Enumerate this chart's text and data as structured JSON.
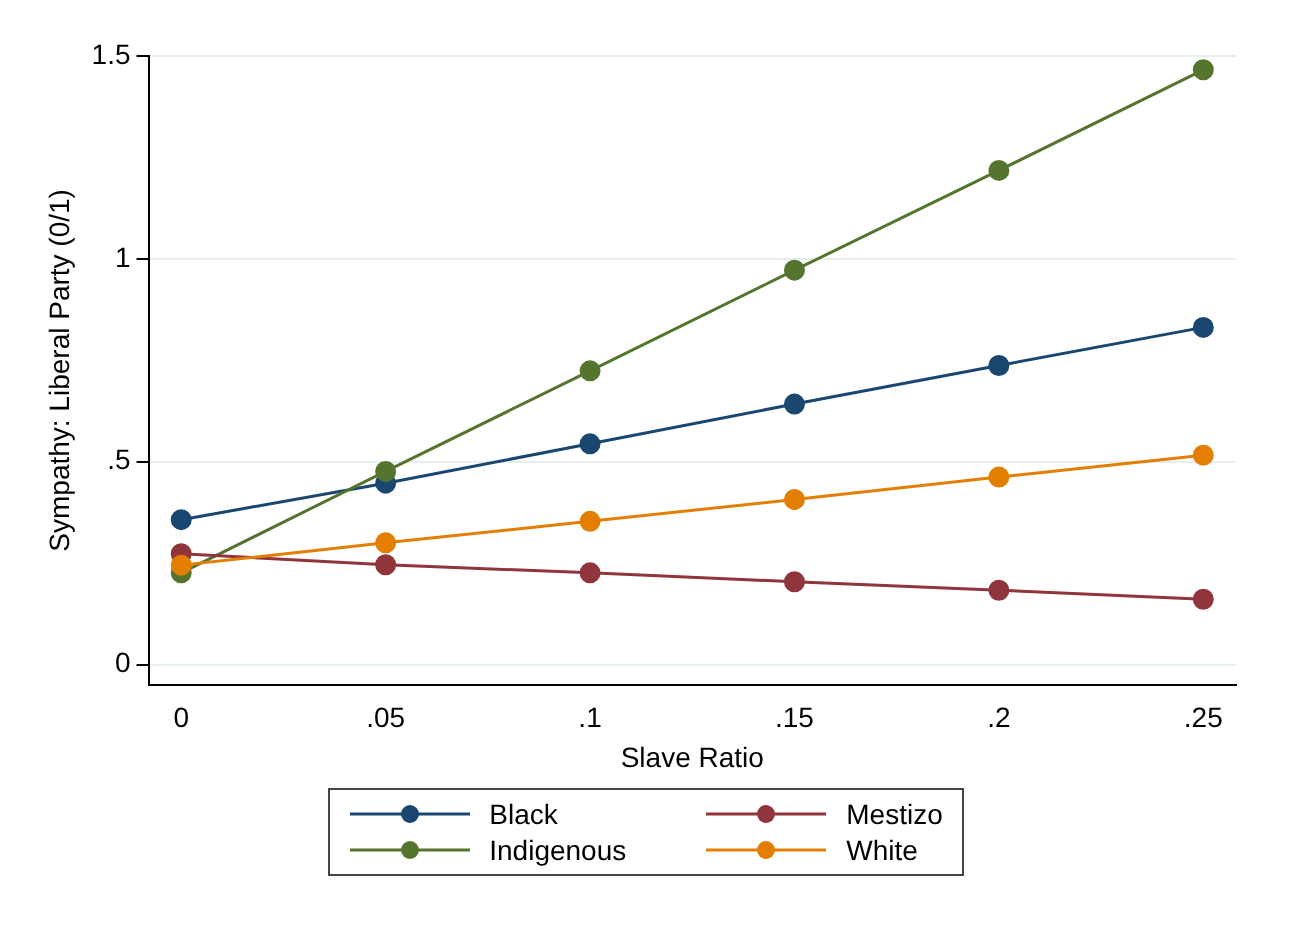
{
  "chart_data": {
    "type": "line",
    "xlabel": "Slave Ratio",
    "ylabel": "Sympathy: Liberal Party (0/1)",
    "x": [
      0,
      0.05,
      0.1,
      0.15,
      0.2,
      0.25
    ],
    "xlim": [
      -0.008,
      0.258
    ],
    "xticks": [
      0,
      {
        "value": 0.05,
        "label": ".05"
      },
      {
        "value": 0.1,
        "label": ".1"
      },
      {
        "value": 0.15,
        "label": ".15"
      },
      {
        "value": 0.2,
        "label": ".2"
      },
      {
        "value": 0.25,
        "label": ".25"
      }
    ],
    "ylim": [
      -0.05,
      1.5
    ],
    "yticks": [
      0,
      {
        "value": 0.5,
        "label": ".5"
      },
      1,
      1.5
    ],
    "grid": "y",
    "legend": "bottom",
    "marker": "circle",
    "line_style": "solid",
    "series": [
      {
        "name": "Black",
        "color": "#1a476f",
        "values": [
          0.357,
          0.447,
          0.544,
          0.642,
          0.737,
          0.831
        ]
      },
      {
        "name": "Indigenous",
        "color": "#55752f",
        "values": [
          0.226,
          0.476,
          0.724,
          0.972,
          1.218,
          1.466
        ]
      },
      {
        "name": "Mestizo",
        "color": "#90353b",
        "values": [
          0.273,
          0.246,
          0.226,
          0.204,
          0.183,
          0.161
        ]
      },
      {
        "name": "White",
        "color": "#e37e00",
        "values": [
          0.245,
          0.3,
          0.353,
          0.407,
          0.462,
          0.516
        ]
      }
    ]
  }
}
